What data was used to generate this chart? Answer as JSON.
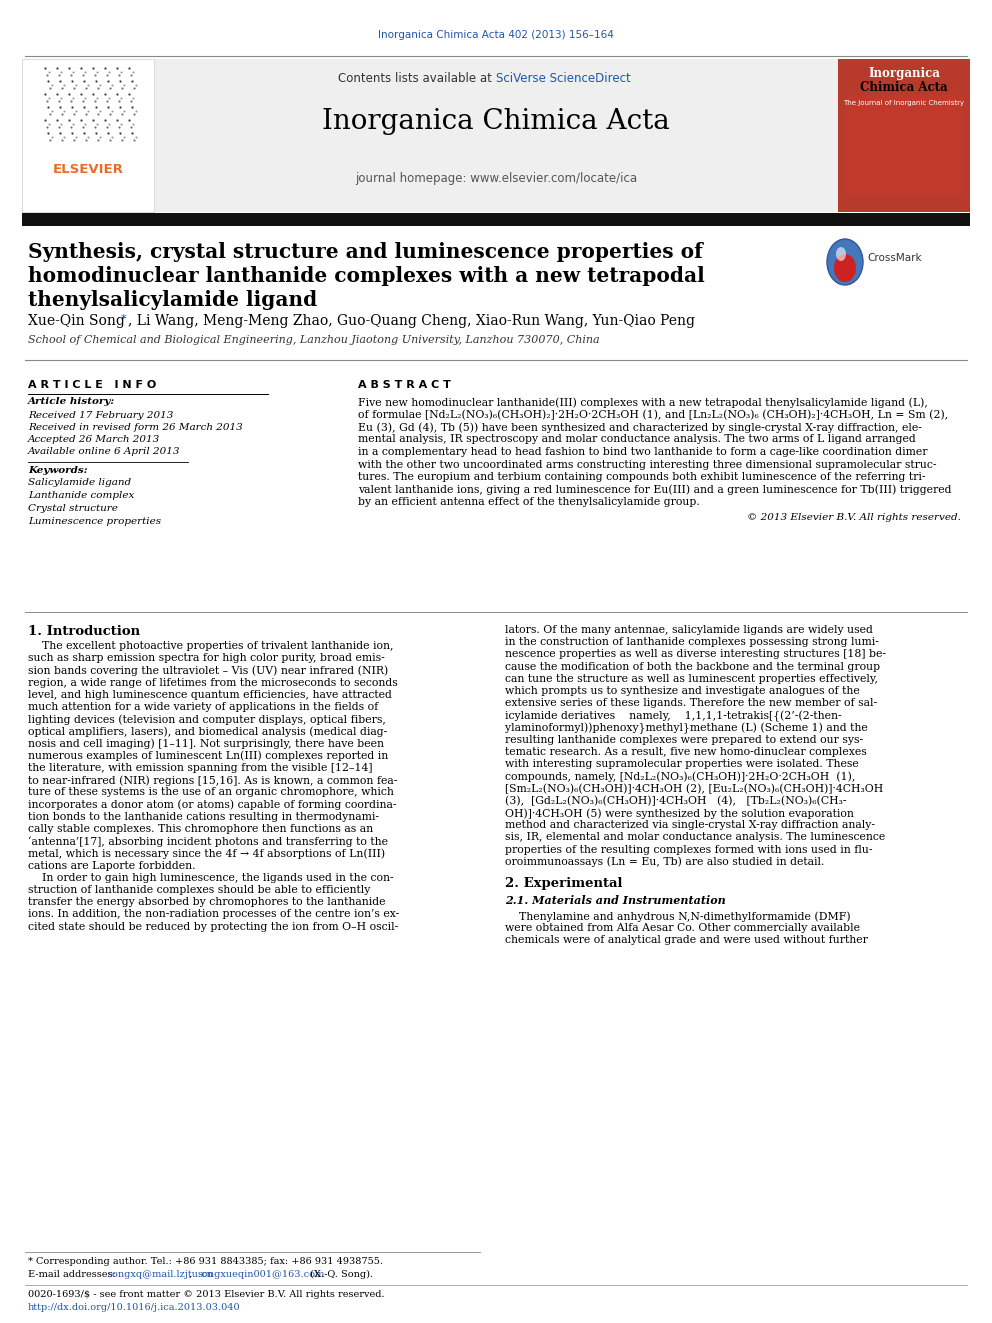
{
  "page_title": "Inorganica Chimica Acta 402 (2013) 156–164",
  "journal_name": "Inorganica Chimica Acta",
  "journal_url": "journal homepage: www.elsevier.com/locate/ica",
  "contents_text_plain": "Contents lists available at ",
  "contents_sciverse": "SciVerse ScienceDirect",
  "paper_title_line1": "Synthesis, crystal structure and luminescence properties of",
  "paper_title_line2": "homodinuclear lanthanide complexes with a new tetrapodal",
  "paper_title_line3": "thenylsalicylamide ligand",
  "authors": "Xue-Qin Song",
  "authors_star": "*",
  "authors_rest": ", Li Wang, Meng-Meng Zhao, Guo-Quang Cheng, Xiao-Run Wang, Yun-Qiao Peng",
  "affiliation": "School of Chemical and Biological Engineering, Lanzhou Jiaotong University, Lanzhou 730070, China",
  "article_info_title": "A R T I C L E   I N F O",
  "article_history_title": "Article history:",
  "received": "Received 17 February 2013",
  "received_revised": "Received in revised form 26 March 2013",
  "accepted": "Accepted 26 March 2013",
  "available": "Available online 6 April 2013",
  "keywords_title": "Keywords:",
  "keywords": [
    "Salicylamide ligand",
    "Lanthanide complex",
    "Crystal structure",
    "Luminescence properties"
  ],
  "abstract_title": "A B S T R A C T",
  "abstract_lines": [
    "Five new homodinuclear lanthanide(III) complexes with a new tetrapodal thenylsalicylamide ligand (L),",
    "of formulae [Nd₂L₂(NO₃)₆(CH₃OH)₂]·2H₂O·2CH₃OH (1), and [Ln₂L₂(NO₃)₆ (CH₃OH)₂]·4CH₃OH, Ln = Sm (2),",
    "Eu (3), Gd (4), Tb (5)) have been synthesized and characterized by single-crystal X-ray diffraction, ele-",
    "mental analysis, IR spectroscopy and molar conductance analysis. The two arms of L ligand arranged",
    "in a complementary head to head fashion to bind two lanthanide to form a cage-like coordination dimer",
    "with the other two uncoordinated arms constructing interesting three dimensional supramolecular struc-",
    "tures. The europium and terbium containing compounds both exhibit luminescence of the referring tri-",
    "valent lanthanide ions, giving a red luminescence for Eu(III) and a green luminescence for Tb(III) triggered",
    "by an efficient antenna effect of the thenylsalicylamide group."
  ],
  "copyright": "© 2013 Elsevier B.V. All rights reserved.",
  "intro_heading": "1. Introduction",
  "intro_col1_lines": [
    "    The excellent photoactive properties of trivalent lanthanide ion,",
    "such as sharp emission spectra for high color purity, broad emis-",
    "sion bands covering the ultraviolet – Vis (UV) near infrared (NIR)",
    "region, a wide range of lifetimes from the microseconds to seconds",
    "level, and high luminescence quantum efficiencies, have attracted",
    "much attention for a wide variety of applications in the fields of",
    "lighting devices (television and computer displays, optical fibers,",
    "optical amplifiers, lasers), and biomedical analysis (medical diag-",
    "nosis and cell imaging) [1–11]. Not surprisingly, there have been",
    "numerous examples of luminescent Ln(III) complexes reported in",
    "the literature, with emission spanning from the visible [12–14]",
    "to near-infrared (NIR) regions [15,16]. As is known, a common fea-",
    "ture of these systems is the use of an organic chromophore, which",
    "incorporates a donor atom (or atoms) capable of forming coordina-",
    "tion bonds to the lanthanide cations resulting in thermodynami-",
    "cally stable complexes. This chromophore then functions as an",
    "‘antenna’[17], absorbing incident photons and transferring to the",
    "metal, which is necessary since the 4f → 4f absorptions of Ln(III)",
    "cations are Laporte forbidden.",
    "    In order to gain high luminescence, the ligands used in the con-",
    "struction of lanthanide complexes should be able to efficiently",
    "transfer the energy absorbed by chromophores to the lanthanide",
    "ions. In addition, the non-radiation processes of the centre ion’s ex-",
    "cited state should be reduced by protecting the ion from O–H oscil-"
  ],
  "intro_col2_lines": [
    "lators. Of the many antennae, salicylamide ligands are widely used",
    "in the construction of lanthanide complexes possessing strong lumi-",
    "nescence properties as well as diverse interesting structures [18] be-",
    "cause the modification of both the backbone and the terminal group",
    "can tune the structure as well as luminescent properties effectively,",
    "which prompts us to synthesize and investigate analogues of the",
    "extensive series of these ligands. Therefore the new member of sal-",
    "icylamide deriatives    namely,    1,1,1,1-tetrakis[{(2’-(2-then-",
    "ylaminoformyl))phenoxy}methyl}methane (L) (Scheme 1) and the",
    "resulting lanthanide complexes were prepared to extend our sys-",
    "tematic research. As a result, five new homo-dinuclear complexes",
    "with interesting supramolecular properties were isolated. These",
    "compounds, namely, [Nd₂L₂(NO₃)₆(CH₃OH)]·2H₂O·2CH₃OH  (1),",
    "[Sm₂L₂(NO₃)₆(CH₃OH)]·4CH₃OH (2), [Eu₂L₂(NO₃)₆(CH₃OH)]·4CH₃OH",
    "(3),  [Gd₂L₂(NO₃)₆(CH₃OH)]·4CH₃OH   (4),   [Tb₂L₂(NO₃)₆(CH₃-",
    "OH)]·4CH₃OH (5) were synthesized by the solution evaporation",
    "method and characterized via single-crystal X-ray diffraction analy-",
    "sis, IR, elemental and molar conductance analysis. The luminescence",
    "properties of the resulting complexes formed with ions used in flu-",
    "oroimmunoassays (Ln = Eu, Tb) are also studied in detail."
  ],
  "section2_heading": "2. Experimental",
  "section21_heading": "2.1. Materials and Instrumentation",
  "section2_col2_lines": [
    "    Thenylamine and anhydrous N,N-dimethylformamide (DMF)",
    "were obtained from Alfa Aesar Co. Other commercially available",
    "chemicals were of analytical grade and were used without further"
  ],
  "footnote_star": "* Corresponding author. Tel.: +86 931 8843385; fax: +86 931 4938755.",
  "footnote_email_plain": "E-mail addresses: ",
  "footnote_email_link1": "songxq@mail.lzjtu.cn",
  "footnote_email_comma": ", ",
  "footnote_email_link2": "songxueqin001@163.com",
  "footnote_email_end": " (X.-Q. Song).",
  "footnote_issn": "0020-1693/$ - see front matter © 2013 Elsevier B.V. All rights reserved.",
  "footnote_doi": "http://dx.doi.org/10.1016/j.ica.2013.03.040",
  "bg_white": "#ffffff",
  "bg_gray": "#efefef",
  "color_black": "#000000",
  "color_link": "#2255aa",
  "color_elsevier_orange": "#e86c2c",
  "color_dark_bar": "#111111",
  "color_red_cover": "#b83a2a",
  "color_gray_line": "#aaaaaa",
  "color_section": "#1a3a6b"
}
